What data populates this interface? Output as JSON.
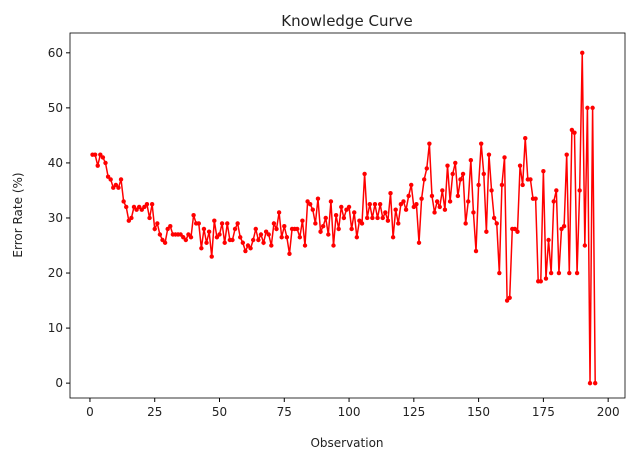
{
  "chart_data": {
    "type": "line",
    "title": "Knowledge Curve",
    "x_label": "Observation",
    "y_label": "Error Rate (%)",
    "x": [
      1,
      2,
      3,
      4,
      5,
      6,
      7,
      8,
      9,
      10,
      11,
      12,
      13,
      14,
      15,
      16,
      17,
      18,
      19,
      20,
      21,
      22,
      23,
      24,
      25,
      26,
      27,
      28,
      29,
      30,
      31,
      32,
      33,
      34,
      35,
      36,
      37,
      38,
      39,
      40,
      41,
      42,
      43,
      44,
      45,
      46,
      47,
      48,
      49,
      50,
      51,
      52,
      53,
      54,
      55,
      56,
      57,
      58,
      59,
      60,
      61,
      62,
      63,
      64,
      65,
      66,
      67,
      68,
      69,
      70,
      71,
      72,
      73,
      74,
      75,
      76,
      77,
      78,
      79,
      80,
      81,
      82,
      83,
      84,
      85,
      86,
      87,
      88,
      89,
      90,
      91,
      92,
      93,
      94,
      95,
      96,
      97,
      98,
      99,
      100,
      101,
      102,
      103,
      104,
      105,
      106,
      107,
      108,
      109,
      110,
      111,
      112,
      113,
      114,
      115,
      116,
      117,
      118,
      119,
      120,
      121,
      122,
      123,
      124,
      125,
      126,
      127,
      128,
      129,
      130,
      131,
      132,
      133,
      134,
      135,
      136,
      137,
      138,
      139,
      140,
      141,
      142,
      143,
      144,
      145,
      146,
      147,
      148,
      149,
      150,
      151,
      152,
      153,
      154,
      155,
      156,
      157,
      158,
      159,
      160,
      161,
      162,
      163,
      164,
      165,
      166,
      167,
      168,
      169,
      170,
      171,
      172,
      173,
      174,
      175,
      176,
      177,
      178,
      179,
      180,
      181,
      182,
      183,
      184,
      185,
      186,
      187,
      188,
      189,
      190,
      191,
      192,
      193,
      194,
      195
    ],
    "series": [
      {
        "color": "#ff0000",
        "values": [
          41.5,
          41.5,
          39.5,
          41.5,
          41,
          40,
          37.5,
          37,
          35.5,
          36,
          35.5,
          37,
          33,
          32,
          29.5,
          30,
          32,
          31.5,
          32,
          31.5,
          32,
          32.5,
          30,
          32.5,
          28,
          29,
          27,
          26,
          25.5,
          28,
          28.5,
          27,
          27,
          27,
          27,
          26.5,
          26,
          27,
          26.5,
          30.5,
          29,
          29,
          24.5,
          28,
          25.5,
          27.5,
          23,
          29.5,
          26.5,
          27,
          29,
          25.5,
          29,
          26,
          26,
          28,
          29,
          26.5,
          25.5,
          24,
          25,
          24.5,
          26,
          28,
          26,
          27,
          25.5,
          27.5,
          27,
          25,
          29,
          28,
          31,
          26.5,
          28.5,
          26.5,
          23.5,
          28,
          28,
          28,
          26.5,
          29.5,
          25,
          33,
          32.5,
          31.5,
          29,
          33.5,
          27.5,
          28.5,
          30,
          27,
          33,
          25,
          30.5,
          28,
          32,
          30,
          31.5,
          32,
          28,
          31,
          26.5,
          29.5,
          29,
          38,
          30,
          32.5,
          30,
          32.5,
          30,
          32.5,
          30,
          31,
          29.5,
          34.5,
          26.5,
          31.5,
          29,
          32.5,
          33,
          31.5,
          34,
          36,
          32,
          32.5,
          25.5,
          33.5,
          37,
          39,
          43.5,
          34,
          31,
          33,
          32,
          35,
          31.5,
          39.5,
          33,
          38,
          40,
          34,
          37,
          38,
          29,
          33,
          40.5,
          31,
          24,
          36,
          43.5,
          38,
          27.5,
          41.5,
          35,
          30,
          29,
          20,
          36,
          41,
          15,
          15.5,
          28,
          28,
          27.5,
          39.5,
          36,
          44.5,
          37,
          37,
          33.5,
          33.5,
          18.5,
          18.5,
          38.5,
          19,
          26,
          20,
          33,
          35,
          20,
          28,
          28.5,
          41.5,
          20,
          46,
          45.5,
          20,
          35,
          60,
          25,
          50,
          0,
          50,
          0
        ]
      }
    ],
    "xlim": [
      -7.7,
      206.5
    ],
    "ylim": [
      -2.7,
      63.6
    ],
    "xticks": [
      0,
      25,
      50,
      75,
      100,
      125,
      150,
      175,
      200
    ],
    "yticks": [
      0,
      10,
      20,
      30,
      40,
      50,
      60
    ]
  }
}
